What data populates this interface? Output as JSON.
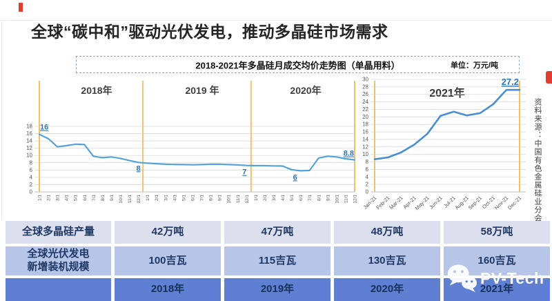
{
  "slide": {
    "title": "全球“碳中和”驱动光伏发电，推动多晶硅市场需求"
  },
  "chart_data": {
    "type": "line",
    "title": "2018-2021年多晶硅月成交均价走势图（单晶用料）",
    "unit_label": "单位：万元/吨",
    "source": "资料来源：中国有色金属硅业分会",
    "grid": true,
    "legend": "none",
    "line_color": "#54a3d8",
    "line_color_2021": "#478ed2",
    "divider_color": "#f5c06a",
    "label_color": "#2e75b6",
    "left_panel": {
      "year_labels": [
        "2018年",
        "2019 年",
        "2020年"
      ],
      "x_tick_labels": [
        "1/1",
        "2/1",
        "3/1",
        "4/1",
        "5/1",
        "6/1",
        "7/1",
        "8/1",
        "9/1",
        "10/1",
        "11/1",
        "12/1"
      ],
      "x_tick_repeat_per_year": 3,
      "ylim": [
        0,
        18
      ],
      "ytick_step": 2,
      "values": [
        15.8,
        14.6,
        12.4,
        12.7,
        13.1,
        13.0,
        9.8,
        9.4,
        9.6,
        9.2,
        8.6,
        8.1,
        7.9,
        7.75,
        7.6,
        7.55,
        7.5,
        7.45,
        7.5,
        7.6,
        7.6,
        7.5,
        7.4,
        7.25,
        7.2,
        7.2,
        7.15,
        7.1,
        6.1,
        5.8,
        5.9,
        9.3,
        9.8,
        9.6,
        9.1,
        8.8
      ],
      "point_labels": [
        {
          "text": "16",
          "month_index": 0
        },
        {
          "text": "8",
          "month_index": 11
        },
        {
          "text": "7",
          "month_index": 23
        },
        {
          "text": "6",
          "month_index": 29
        },
        {
          "text": "8.8",
          "month_index": 35
        }
      ]
    },
    "right_panel": {
      "year_label": "2021年",
      "x_tick_labels": [
        "Jan-21",
        "Feb-21",
        "Mar-21",
        "Apr-21",
        "May-21",
        "Jun-21",
        "Jul-21",
        "Aug-21",
        "Sep-21",
        "Oct-21",
        "Nov-21",
        "Dec-21"
      ],
      "ylim": [
        0,
        30
      ],
      "ytick_step": 2,
      "values": [
        8.7,
        9.2,
        10.5,
        12.6,
        15.5,
        20.3,
        21.4,
        20.4,
        21.0,
        23.4,
        27.2,
        27.2
      ],
      "point_labels": [
        {
          "text": "27.2",
          "month_index": 11
        }
      ]
    }
  },
  "table": {
    "rows": [
      {
        "label": "全球多晶硅产量",
        "values": [
          "42万吨",
          "47万吨",
          "48万吨",
          "58万吨"
        ]
      },
      {
        "label": "全球光伏发电\n新增装机规模",
        "values": [
          "100吉瓦",
          "115吉瓦",
          "130吉瓦",
          "160吉瓦"
        ]
      },
      {
        "label": "",
        "values": [
          "2018年",
          "2019年",
          "2020年",
          "2021年"
        ]
      }
    ]
  },
  "watermark": {
    "brand": "PV-Tech"
  }
}
